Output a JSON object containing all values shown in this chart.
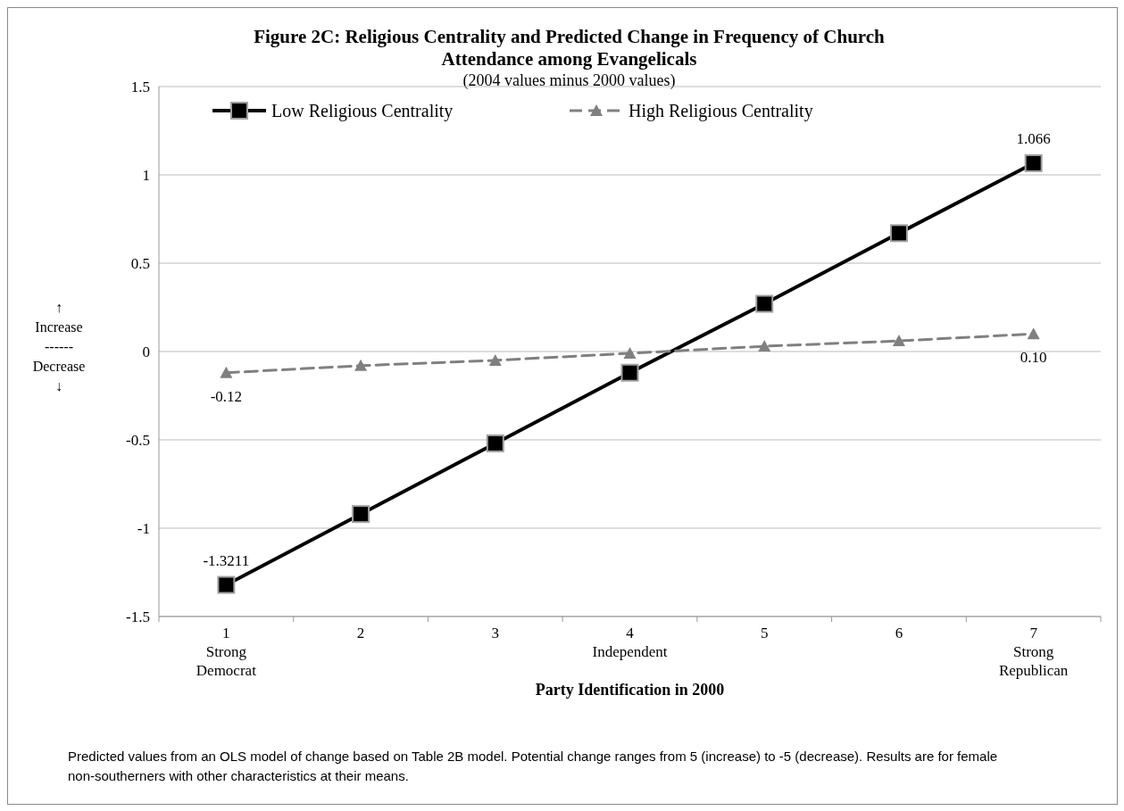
{
  "chart_data": {
    "type": "line",
    "title": "Figure 2C: Religious Centrality and Predicted Change in Frequency of Church Attendance among Evangelicals",
    "subtitle": "(2004 values minus 2000 values)",
    "xlabel": "Party Identification in 2000",
    "ylabel": "↑\nIncrease\n------\nDecrease\n↓",
    "categories": [
      "1\nStrong\nDemocrat",
      "2",
      "3",
      "4\nIndependent",
      "5",
      "6",
      "7\nStrong\nRepublican"
    ],
    "series": [
      {
        "name": "Low Religious Centrality",
        "color": "#000000",
        "marker": "square",
        "line_style": "solid",
        "values": [
          -1.3211,
          -0.92,
          -0.52,
          -0.12,
          0.27,
          0.67,
          1.066
        ],
        "value_labels": [
          "-1.3211",
          null,
          null,
          null,
          null,
          null,
          "1.066"
        ]
      },
      {
        "name": "High Religious Centrality",
        "color": "#808080",
        "marker": "triangle",
        "line_style": "dashed",
        "values": [
          -0.12,
          -0.08,
          -0.05,
          -0.01,
          0.03,
          0.06,
          0.1
        ],
        "value_labels": [
          "-0.12",
          null,
          null,
          null,
          null,
          null,
          "0.10"
        ]
      }
    ],
    "ylim": [
      -1.5,
      1.5
    ],
    "yticks": [
      {
        "value": -1.5,
        "label": "-1.5"
      },
      {
        "value": -1,
        "label": "-1"
      },
      {
        "value": -0.5,
        "label": "-0.5"
      },
      0,
      0.5,
      1,
      1.5
    ],
    "grid": "y",
    "legend": "top",
    "annotations": [
      "Predicted values from an OLS model of change based on Table 2B model. Potential change ranges from 5 (increase) to -5 (decrease). Results are for female non-southerners with other characteristics at their means."
    ]
  }
}
